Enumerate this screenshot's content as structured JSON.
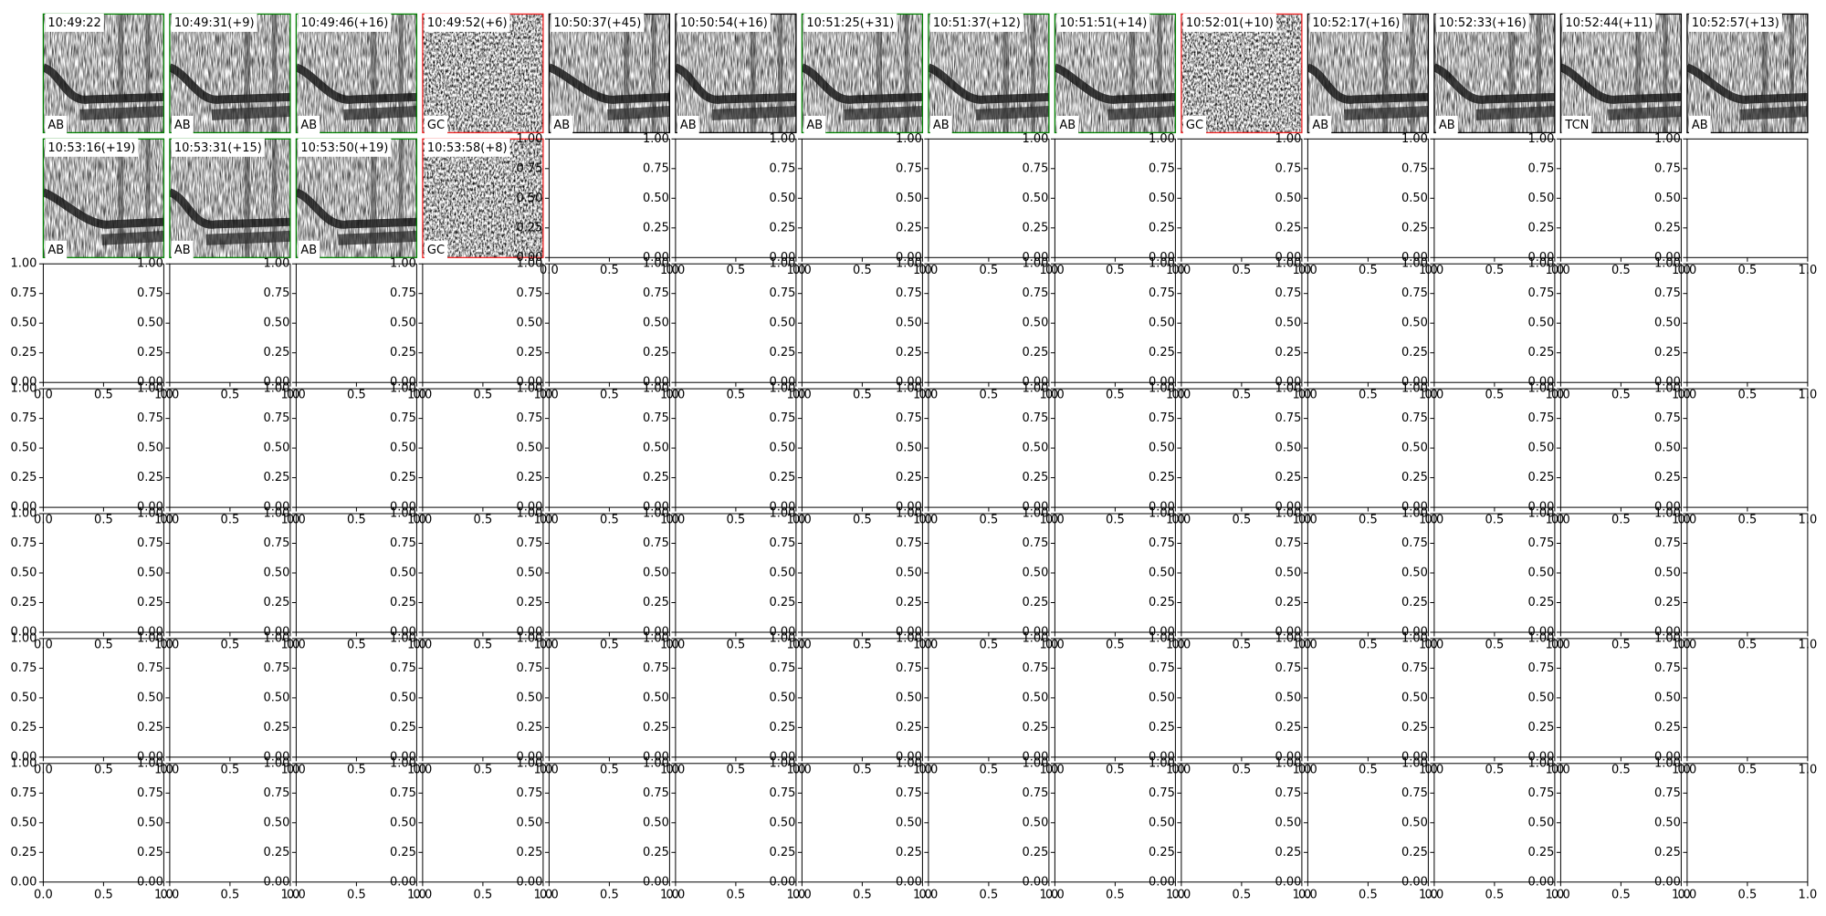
{
  "panels": [
    {
      "title": "10:49:22",
      "label": "AB",
      "border": "#008000"
    },
    {
      "title": "10:49:31(+9)",
      "label": "AB",
      "border": "#008000"
    },
    {
      "title": "10:49:46(+16)",
      "label": "AB",
      "border": "#008000"
    },
    {
      "title": "10:49:52(+6)",
      "label": "GC",
      "border": "#ee2222"
    },
    {
      "title": "10:50:37(+45)",
      "label": "AB",
      "border": "#000000"
    },
    {
      "title": "10:50:54(+16)",
      "label": "AB",
      "border": "#000000"
    },
    {
      "title": "10:51:25(+31)",
      "label": "AB",
      "border": "#008000"
    },
    {
      "title": "10:51:37(+12)",
      "label": "AB",
      "border": "#008000"
    },
    {
      "title": "10:51:51(+14)",
      "label": "AB",
      "border": "#008000"
    },
    {
      "title": "10:52:01(+10)",
      "label": "GC",
      "border": "#ee2222"
    },
    {
      "title": "10:52:17(+16)",
      "label": "AB",
      "border": "#000000"
    },
    {
      "title": "10:52:33(+16)",
      "label": "AB",
      "border": "#000000"
    },
    {
      "title": "10:52:44(+11)",
      "label": "TCN",
      "border": "#000000"
    },
    {
      "title": "10:52:57(+13)",
      "label": "AB",
      "border": "#000000"
    },
    {
      "title": "10:53:16(+19)",
      "label": "AB",
      "border": "#008000"
    },
    {
      "title": "10:53:31(+15)",
      "label": "AB",
      "border": "#008000"
    },
    {
      "title": "10:53:50(+19)",
      "label": "AB",
      "border": "#008000"
    },
    {
      "title": "10:53:58(+8)",
      "label": "GC",
      "border": "#ee2222"
    }
  ],
  "empty_axes": {
    "xlim": [
      0,
      1
    ],
    "ylim": [
      0,
      1
    ],
    "xticks": [
      {
        "value": 0,
        "label": "0.0"
      },
      {
        "value": 0.5,
        "label": "0.5"
      },
      {
        "value": 1,
        "label": "1.0"
      }
    ],
    "yticks": [
      {
        "value": 0,
        "label": "0.00"
      },
      {
        "value": 0.25,
        "label": "0.25"
      },
      {
        "value": 0.5,
        "label": "0.50"
      },
      {
        "value": 0.75,
        "label": "0.75"
      },
      {
        "value": 1,
        "label": "1.00"
      }
    ]
  }
}
